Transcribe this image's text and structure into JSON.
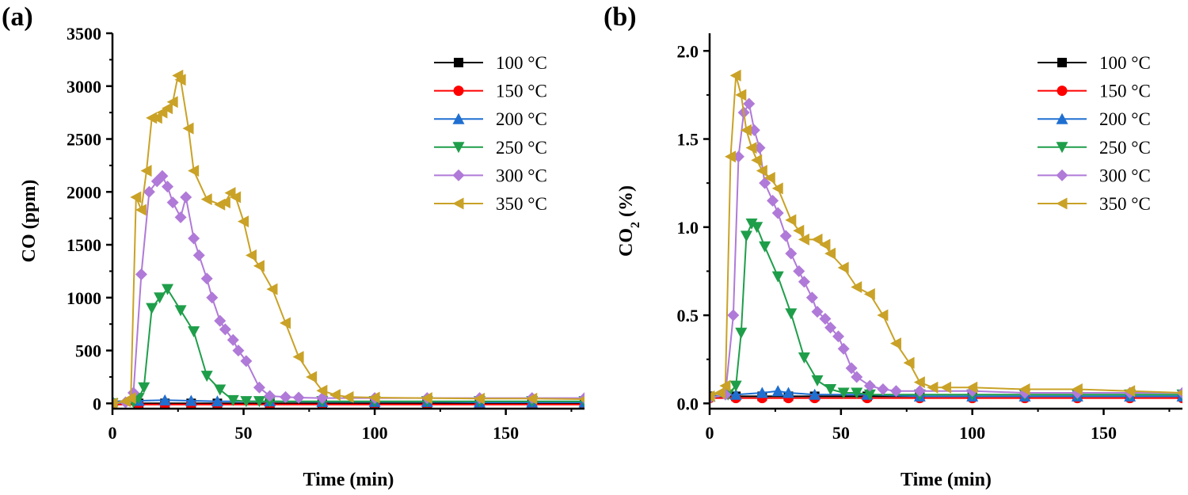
{
  "chart_data": [
    {
      "panel_label": "(a)",
      "type": "line",
      "xlabel": "Time (min)",
      "ylabel": "CO (ppm)",
      "xlim": [
        0,
        180
      ],
      "ylim": [
        -50,
        3500
      ],
      "xticks": [
        0,
        50,
        100,
        150
      ],
      "yticks": [
        0,
        500,
        1000,
        1500,
        2000,
        2500,
        3000,
        3500
      ],
      "xtick_labels": [
        "0",
        "50",
        "100",
        "150"
      ],
      "ytick_labels": [
        "0",
        "500",
        "1000",
        "1500",
        "2000",
        "2500",
        "3000",
        "3500"
      ],
      "legend_position": "top-right",
      "series": [
        {
          "name": "100 °C",
          "color": "#000000",
          "marker": "square",
          "x": [
            0,
            10,
            20,
            30,
            40,
            60,
            80,
            100,
            120,
            140,
            160,
            180
          ],
          "y": [
            0,
            0,
            0,
            0,
            0,
            0,
            0,
            0,
            0,
            0,
            0,
            0
          ]
        },
        {
          "name": "150 °C",
          "color": "#ff0000",
          "marker": "circle",
          "x": [
            0,
            10,
            20,
            30,
            40,
            60,
            80,
            100,
            120,
            140,
            160,
            180
          ],
          "y": [
            -10,
            -10,
            -10,
            -10,
            -10,
            -10,
            -10,
            -10,
            -10,
            -10,
            -10,
            -10
          ]
        },
        {
          "name": "200 °C",
          "color": "#1f6fd1",
          "marker": "triangle-up",
          "x": [
            0,
            10,
            20,
            30,
            40,
            60,
            80,
            100,
            120,
            140,
            160,
            180
          ],
          "y": [
            20,
            25,
            30,
            25,
            20,
            20,
            15,
            15,
            15,
            10,
            10,
            10
          ]
        },
        {
          "name": "250 °C",
          "color": "#1f9e4a",
          "marker": "triangle-down",
          "x": [
            0,
            8,
            10,
            12,
            15,
            18,
            21,
            26,
            31,
            36,
            41,
            46,
            51,
            56,
            60,
            80,
            100,
            120,
            140,
            160,
            180
          ],
          "y": [
            0,
            10,
            50,
            150,
            900,
            1000,
            1080,
            880,
            680,
            260,
            130,
            30,
            20,
            20,
            20,
            20,
            20,
            20,
            20,
            20,
            20
          ]
        },
        {
          "name": "300 °C",
          "color": "#b07ad8",
          "marker": "diamond",
          "x": [
            0,
            5,
            8,
            11,
            14,
            17,
            19,
            21,
            23,
            26,
            28,
            31,
            33,
            36,
            38,
            41,
            43,
            46,
            48,
            51,
            56,
            60,
            66,
            71,
            80,
            100,
            120,
            140,
            160,
            180
          ],
          "y": [
            0,
            10,
            100,
            1220,
            2000,
            2100,
            2150,
            2050,
            1900,
            1760,
            1950,
            1560,
            1400,
            1180,
            1000,
            780,
            700,
            600,
            500,
            400,
            150,
            70,
            60,
            55,
            50,
            50,
            50,
            50,
            50,
            50
          ]
        },
        {
          "name": "350 °C",
          "color": "#c9a227",
          "marker": "triangle-left",
          "x": [
            0,
            5,
            7,
            9,
            11,
            13,
            15,
            17,
            19,
            21,
            23,
            25,
            26,
            29,
            31,
            36,
            41,
            43,
            45,
            47,
            50,
            53,
            56,
            61,
            66,
            71,
            76,
            80,
            85,
            90,
            100,
            120,
            140,
            160,
            180
          ],
          "y": [
            0,
            20,
            50,
            1950,
            1830,
            2200,
            2700,
            2700,
            2750,
            2790,
            2850,
            3100,
            3060,
            2600,
            2200,
            1930,
            1880,
            1900,
            1990,
            1950,
            1720,
            1400,
            1300,
            1080,
            760,
            440,
            250,
            120,
            80,
            60,
            55,
            50,
            45,
            45,
            40
          ]
        }
      ]
    },
    {
      "panel_label": "(b)",
      "type": "line",
      "xlabel": "Time (min)",
      "ylabel": "CO",
      "ylabel_subscript": "2",
      "ylabel_suffix": " (%)",
      "xlim": [
        0,
        180
      ],
      "ylim": [
        -0.03,
        2.1
      ],
      "xticks": [
        0,
        50,
        100,
        150
      ],
      "yticks": [
        0.0,
        0.5,
        1.0,
        1.5,
        2.0
      ],
      "xtick_labels": [
        "0",
        "50",
        "100",
        "150"
      ],
      "ytick_labels": [
        "0.0",
        "0.5",
        "1.0",
        "1.5",
        "2.0"
      ],
      "legend_position": "top-right",
      "series": [
        {
          "name": "100 °C",
          "color": "#000000",
          "marker": "square",
          "x": [
            0,
            10,
            20,
            30,
            40,
            60,
            80,
            100,
            120,
            140,
            160,
            180
          ],
          "y": [
            0.04,
            0.04,
            0.04,
            0.04,
            0.04,
            0.04,
            0.04,
            0.04,
            0.04,
            0.04,
            0.04,
            0.04
          ]
        },
        {
          "name": "150 °C",
          "color": "#ff0000",
          "marker": "circle",
          "x": [
            0,
            10,
            20,
            30,
            40,
            60,
            80,
            100,
            120,
            140,
            160,
            180
          ],
          "y": [
            0.03,
            0.03,
            0.03,
            0.03,
            0.03,
            0.03,
            0.03,
            0.03,
            0.03,
            0.03,
            0.03,
            0.03
          ]
        },
        {
          "name": "200 °C",
          "color": "#1f6fd1",
          "marker": "triangle-up",
          "x": [
            0,
            10,
            20,
            26,
            30,
            40,
            60,
            80,
            100,
            120,
            140,
            160,
            180
          ],
          "y": [
            0.04,
            0.05,
            0.06,
            0.07,
            0.06,
            0.05,
            0.05,
            0.04,
            0.04,
            0.04,
            0.04,
            0.04,
            0.04
          ]
        },
        {
          "name": "250 °C",
          "color": "#1f9e4a",
          "marker": "triangle-down",
          "x": [
            0,
            7,
            10,
            12,
            14,
            16,
            18,
            21,
            26,
            31,
            36,
            41,
            46,
            51,
            56,
            61,
            80,
            100,
            120,
            140,
            160,
            180
          ],
          "y": [
            0.03,
            0.05,
            0.1,
            0.4,
            0.95,
            1.02,
            1.0,
            0.89,
            0.72,
            0.51,
            0.26,
            0.13,
            0.08,
            0.06,
            0.06,
            0.05,
            0.05,
            0.05,
            0.05,
            0.05,
            0.05,
            0.05
          ]
        },
        {
          "name": "300 °C",
          "color": "#b07ad8",
          "marker": "diamond",
          "x": [
            0,
            6,
            9,
            11,
            13,
            15,
            17,
            19,
            21,
            24,
            26,
            29,
            31,
            34,
            36,
            39,
            41,
            44,
            46,
            49,
            51,
            54,
            56,
            61,
            66,
            71,
            80,
            100,
            120,
            140,
            160,
            180
          ],
          "y": [
            0.03,
            0.05,
            0.5,
            1.4,
            1.65,
            1.7,
            1.55,
            1.45,
            1.25,
            1.15,
            1.08,
            0.95,
            0.85,
            0.75,
            0.69,
            0.6,
            0.52,
            0.48,
            0.43,
            0.38,
            0.31,
            0.2,
            0.15,
            0.1,
            0.08,
            0.07,
            0.07,
            0.07,
            0.06,
            0.06,
            0.06,
            0.06
          ]
        },
        {
          "name": "350 °C",
          "color": "#c9a227",
          "marker": "triangle-left",
          "x": [
            0,
            4,
            6,
            8,
            10,
            12,
            14,
            16,
            18,
            20,
            23,
            26,
            31,
            34,
            36,
            41,
            44,
            46,
            51,
            56,
            61,
            66,
            71,
            76,
            80,
            85,
            90,
            100,
            120,
            140,
            160,
            180
          ],
          "y": [
            0.04,
            0.06,
            0.1,
            1.4,
            1.86,
            1.75,
            1.55,
            1.45,
            1.38,
            1.32,
            1.28,
            1.22,
            1.04,
            0.98,
            0.93,
            0.93,
            0.9,
            0.85,
            0.77,
            0.66,
            0.62,
            0.5,
            0.34,
            0.23,
            0.12,
            0.09,
            0.09,
            0.09,
            0.08,
            0.08,
            0.07,
            0.06
          ]
        }
      ]
    }
  ]
}
